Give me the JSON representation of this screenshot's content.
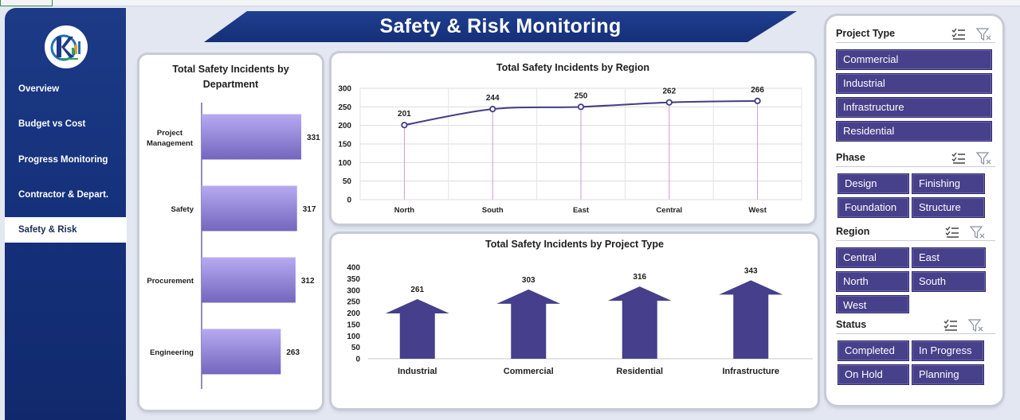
{
  "sidebar": {
    "items": [
      {
        "label": "Overview"
      },
      {
        "label": "Budget vs Cost"
      },
      {
        "label": "Progress Monitoring"
      },
      {
        "label": "Contractor & Depart."
      },
      {
        "label": "Safety & Risk"
      }
    ],
    "active_index": 4
  },
  "dashboard": {
    "title": "Safety & Risk Monitoring"
  },
  "colors": {
    "sidebar": "#15307a",
    "banner": "#1c3a86",
    "slicer_button": "#47408a",
    "bar_top": "#b3a6ee",
    "bar_bottom": "#7568bf",
    "line": "#433d86",
    "arrow": "#453f8c"
  },
  "charts": {
    "department": {
      "title": "Total Safety Incidents by Department"
    },
    "region": {
      "title": "Total Safety Incidents by Region"
    },
    "project_type": {
      "title": "Total Safety Incidents by Project Type"
    }
  },
  "chart_data": [
    {
      "type": "bar",
      "orientation": "horizontal",
      "title": "Total Safety Incidents by Department",
      "categories": [
        "Project Management",
        "Safety",
        "Procurement",
        "Engineering"
      ],
      "values": [
        331,
        317,
        312,
        263
      ],
      "data_labels": true,
      "grid": false
    },
    {
      "type": "line",
      "title": "Total Safety Incidents by Region",
      "categories": [
        "North",
        "South",
        "East",
        "Central",
        "West"
      ],
      "values": [
        201,
        244,
        250,
        262,
        266
      ],
      "ylim": [
        0,
        300
      ],
      "yticks": [
        0,
        50,
        100,
        150,
        200,
        250,
        300
      ],
      "data_labels": true,
      "grid": true,
      "drop_lines": true
    },
    {
      "type": "bar",
      "marker": "arrow",
      "title": "Total Safety Incidents by Project Type",
      "categories": [
        "Industrial",
        "Commercial",
        "Residential",
        "Infrastructure"
      ],
      "values": [
        261,
        303,
        316,
        343
      ],
      "ylim": [
        0,
        400
      ],
      "yticks": [
        0,
        50,
        100,
        150,
        200,
        250,
        300,
        350,
        400
      ],
      "data_labels": true,
      "grid": false
    }
  ],
  "slicers": {
    "project_type": {
      "title": "Project Type",
      "options": [
        "Commercial",
        "Industrial",
        "Infrastructure",
        "Residential"
      ],
      "icons": [
        "multi-select-icon",
        "clear-filter-icon"
      ]
    },
    "phase": {
      "title": "Phase",
      "options": [
        "Design",
        "Finishing",
        "Foundation",
        "Structure"
      ],
      "icons": [
        "multi-select-icon",
        "clear-filter-icon"
      ]
    },
    "region": {
      "title": "Region",
      "options": [
        "Central",
        "East",
        "North",
        "South",
        "West"
      ],
      "icons": [
        "multi-select-icon",
        "clear-filter-icon"
      ]
    },
    "status": {
      "title": "Status",
      "options": [
        "Completed",
        "In Progress",
        "On Hold",
        "Planning"
      ],
      "icons": [
        "multi-select-icon",
        "clear-filter-icon"
      ]
    }
  }
}
